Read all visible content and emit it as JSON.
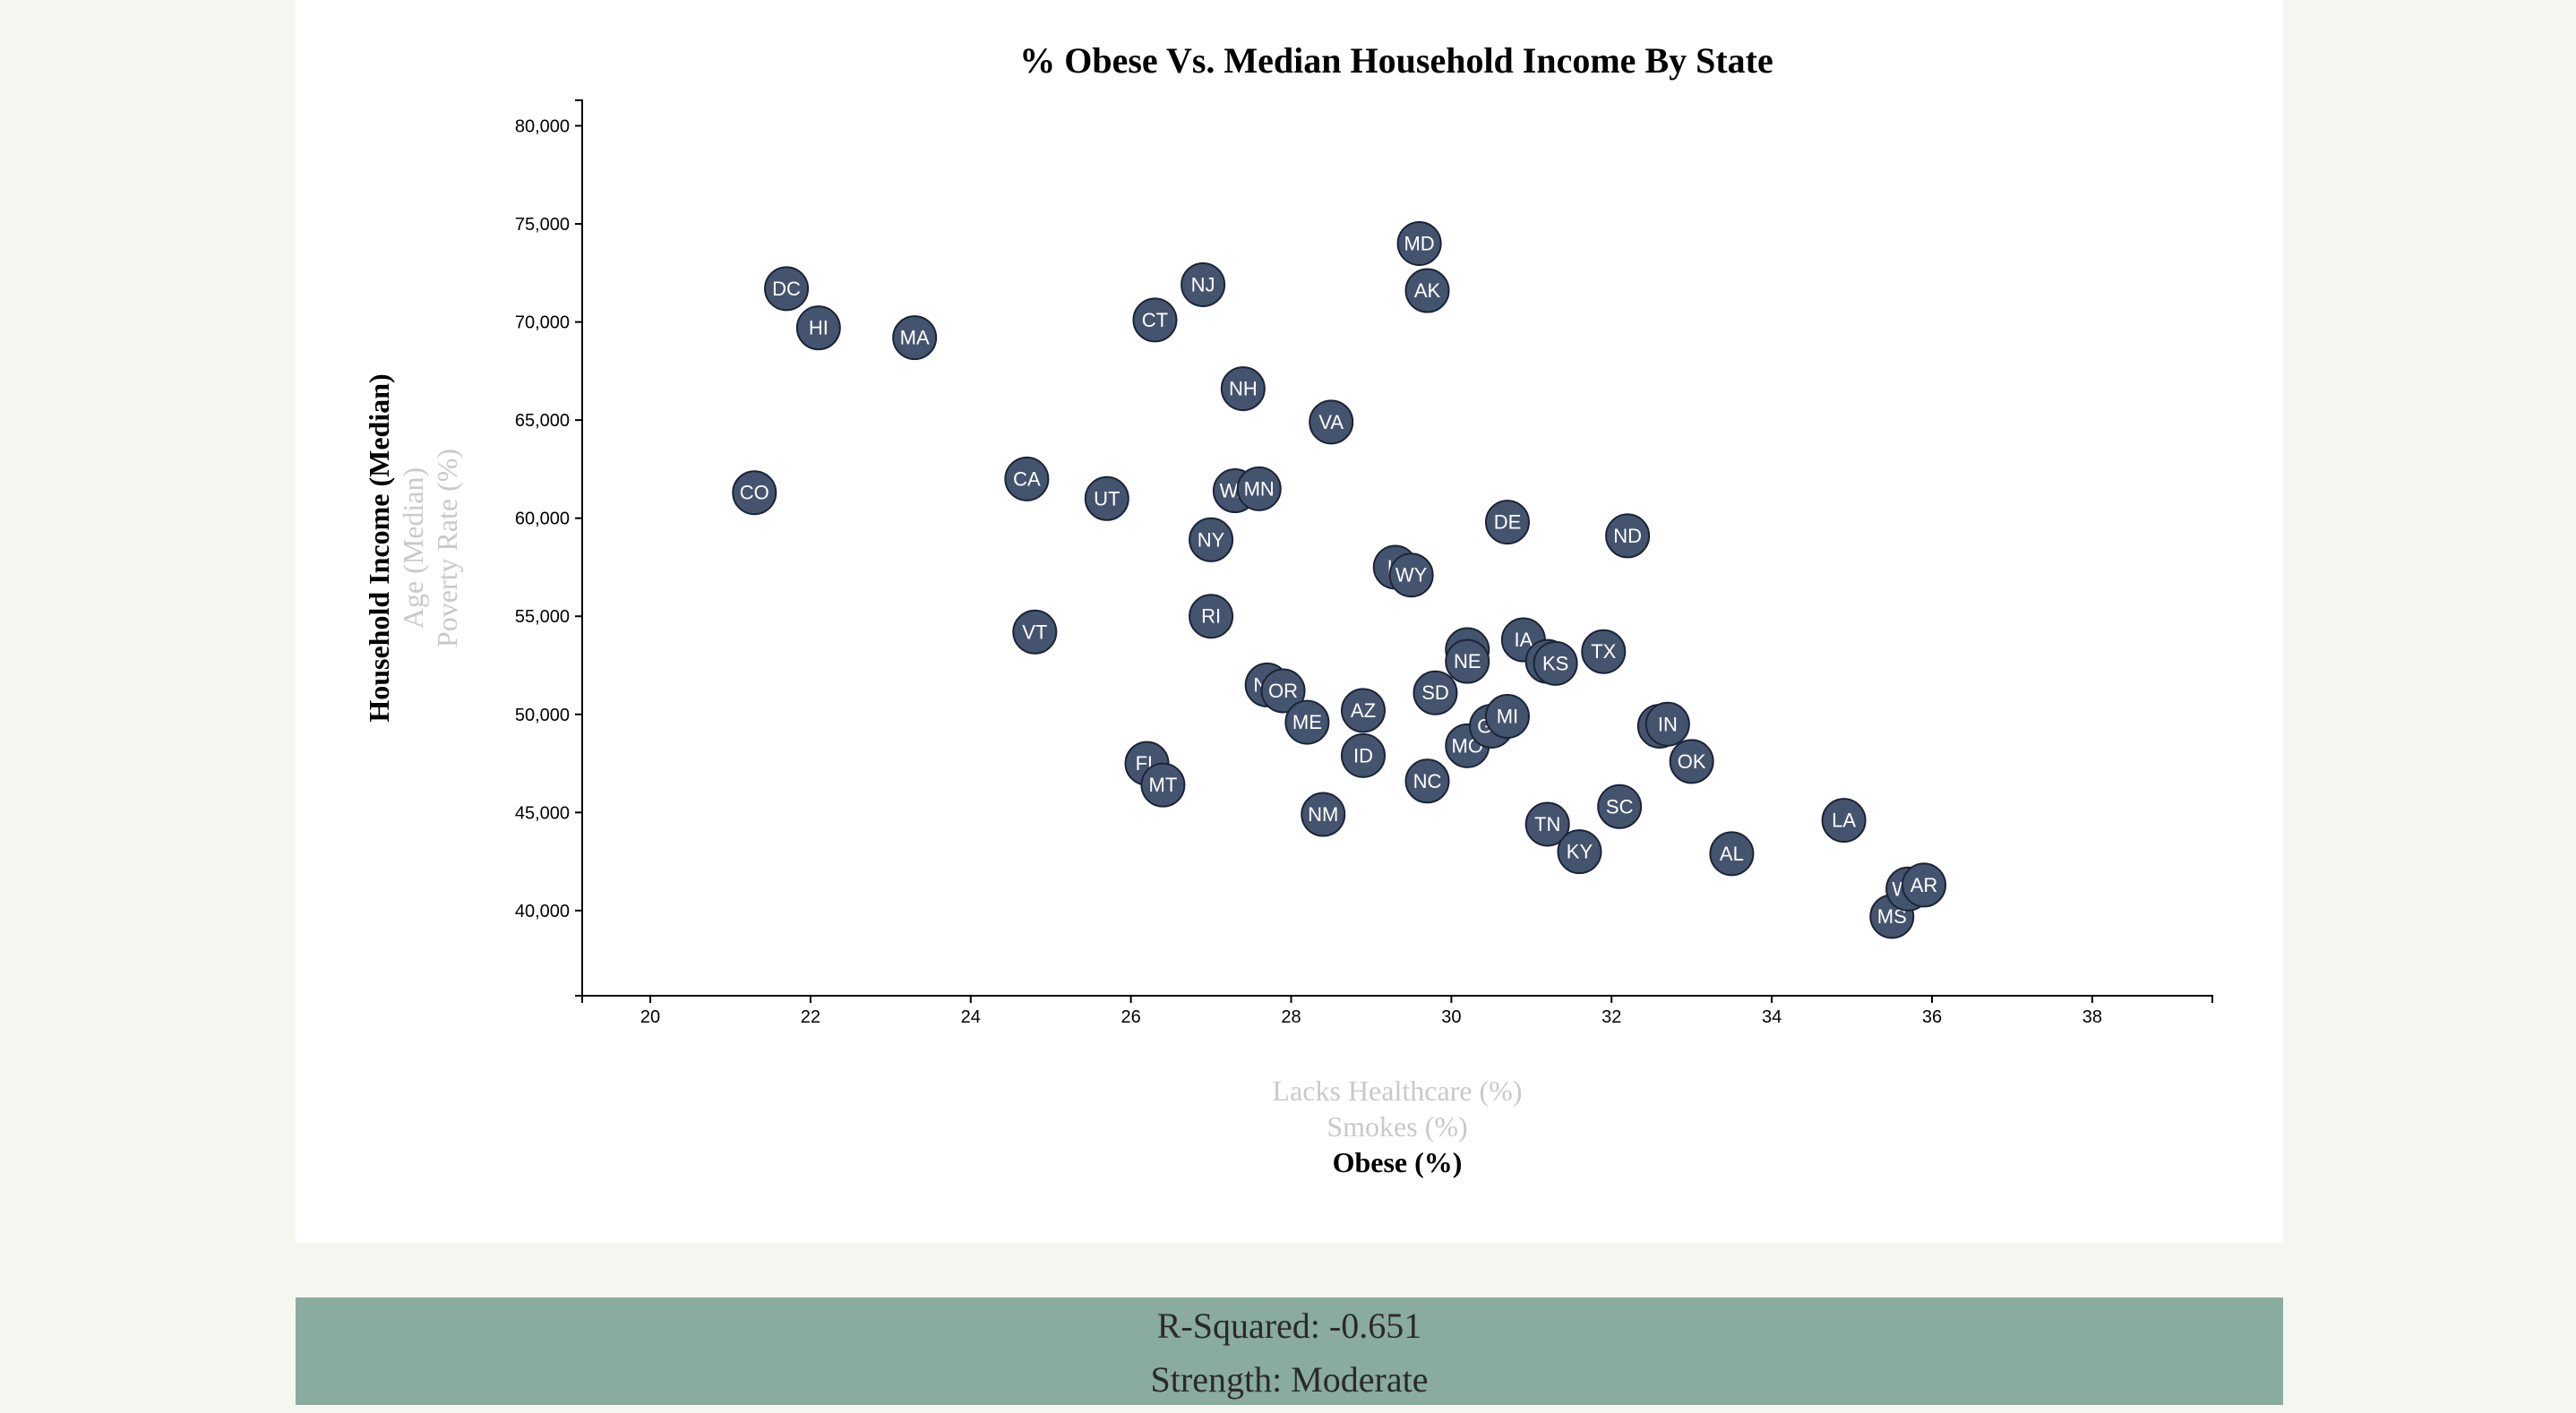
{
  "chart_data": {
    "type": "scatter",
    "title": "% Obese Vs. Median Household Income By State",
    "xlabel": "Obese (%)",
    "ylabel": "Household Income (Median)",
    "x_axis_options": [
      {
        "label": "Lacks Healthcare (%)",
        "active": false
      },
      {
        "label": "Smokes (%)",
        "active": false
      },
      {
        "label": "Obese (%)",
        "active": true
      }
    ],
    "y_axis_options": [
      {
        "label": "Household Income (Median)",
        "active": true
      },
      {
        "label": "Age (Median)",
        "active": false
      },
      {
        "label": "Poverty Rate (%)",
        "active": false
      }
    ],
    "xlim": [
      19.15,
      39.5
    ],
    "ylim": [
      35660,
      81300
    ],
    "x_ticks": [
      20,
      22,
      24,
      26,
      28,
      30,
      32,
      34,
      36,
      38
    ],
    "y_ticks": [
      40000,
      45000,
      50000,
      55000,
      60000,
      65000,
      70000,
      75000,
      80000
    ],
    "y_tick_labels": [
      "40,000",
      "45,000",
      "50,000",
      "55,000",
      "60,000",
      "65,000",
      "70,000",
      "75,000",
      "80,000"
    ],
    "grid": false,
    "marker_color": "#44546e",
    "points": [
      {
        "abbr": "DC",
        "x": 21.7,
        "y": 71700
      },
      {
        "abbr": "HI",
        "x": 22.1,
        "y": 69700
      },
      {
        "abbr": "MA",
        "x": 23.3,
        "y": 69200
      },
      {
        "abbr": "CO",
        "x": 21.3,
        "y": 61300
      },
      {
        "abbr": "CA",
        "x": 24.7,
        "y": 62000
      },
      {
        "abbr": "VT",
        "x": 24.8,
        "y": 54200
      },
      {
        "abbr": "UT",
        "x": 25.7,
        "y": 61000
      },
      {
        "abbr": "CT",
        "x": 26.3,
        "y": 70100
      },
      {
        "abbr": "NJ",
        "x": 26.9,
        "y": 71900
      },
      {
        "abbr": "FL",
        "x": 26.2,
        "y": 47500
      },
      {
        "abbr": "MT",
        "x": 26.4,
        "y": 46400
      },
      {
        "abbr": "NY",
        "x": 27.0,
        "y": 58900
      },
      {
        "abbr": "RI",
        "x": 27.0,
        "y": 55000
      },
      {
        "abbr": "WA",
        "x": 27.3,
        "y": 61400
      },
      {
        "abbr": "MN",
        "x": 27.6,
        "y": 61500
      },
      {
        "abbr": "NH",
        "x": 27.4,
        "y": 66600
      },
      {
        "abbr": "NV",
        "x": 27.7,
        "y": 51500
      },
      {
        "abbr": "OR",
        "x": 27.9,
        "y": 51200
      },
      {
        "abbr": "ME",
        "x": 28.2,
        "y": 49600
      },
      {
        "abbr": "VA",
        "x": 28.5,
        "y": 64900
      },
      {
        "abbr": "NM",
        "x": 28.4,
        "y": 44900
      },
      {
        "abbr": "AZ",
        "x": 28.9,
        "y": 50200
      },
      {
        "abbr": "ID",
        "x": 28.9,
        "y": 47900
      },
      {
        "abbr": "IL",
        "x": 29.3,
        "y": 57500
      },
      {
        "abbr": "WY",
        "x": 29.5,
        "y": 57100
      },
      {
        "abbr": "MD",
        "x": 29.6,
        "y": 74000
      },
      {
        "abbr": "AK",
        "x": 29.7,
        "y": 71600
      },
      {
        "abbr": "NC",
        "x": 29.7,
        "y": 46600
      },
      {
        "abbr": "SD",
        "x": 29.8,
        "y": 51100
      },
      {
        "abbr": "PA",
        "x": 30.2,
        "y": 53300
      },
      {
        "abbr": "NE",
        "x": 30.2,
        "y": 52700
      },
      {
        "abbr": "MO",
        "x": 30.2,
        "y": 48400
      },
      {
        "abbr": "GA",
        "x": 30.5,
        "y": 49400
      },
      {
        "abbr": "MI",
        "x": 30.7,
        "y": 49900
      },
      {
        "abbr": "DE",
        "x": 30.7,
        "y": 59800
      },
      {
        "abbr": "IA",
        "x": 30.9,
        "y": 53800
      },
      {
        "abbr": "WI",
        "x": 31.2,
        "y": 52700
      },
      {
        "abbr": "KS",
        "x": 31.3,
        "y": 52600
      },
      {
        "abbr": "TN",
        "x": 31.2,
        "y": 44400
      },
      {
        "abbr": "KY",
        "x": 31.6,
        "y": 43000
      },
      {
        "abbr": "TX",
        "x": 31.9,
        "y": 53200
      },
      {
        "abbr": "SC",
        "x": 32.1,
        "y": 45300
      },
      {
        "abbr": "ND",
        "x": 32.2,
        "y": 59100
      },
      {
        "abbr": "OH",
        "x": 32.6,
        "y": 49400
      },
      {
        "abbr": "IN",
        "x": 32.7,
        "y": 49500
      },
      {
        "abbr": "OK",
        "x": 33.0,
        "y": 47600
      },
      {
        "abbr": "AL",
        "x": 33.5,
        "y": 42900
      },
      {
        "abbr": "LA",
        "x": 34.9,
        "y": 44600
      },
      {
        "abbr": "MS",
        "x": 35.5,
        "y": 39700
      },
      {
        "abbr": "WV",
        "x": 35.7,
        "y": 41100
      },
      {
        "abbr": "AR",
        "x": 35.9,
        "y": 41300
      }
    ]
  },
  "stats": {
    "r_squared": "R-Squared: -0.651",
    "strength": "Strength: Moderate"
  }
}
